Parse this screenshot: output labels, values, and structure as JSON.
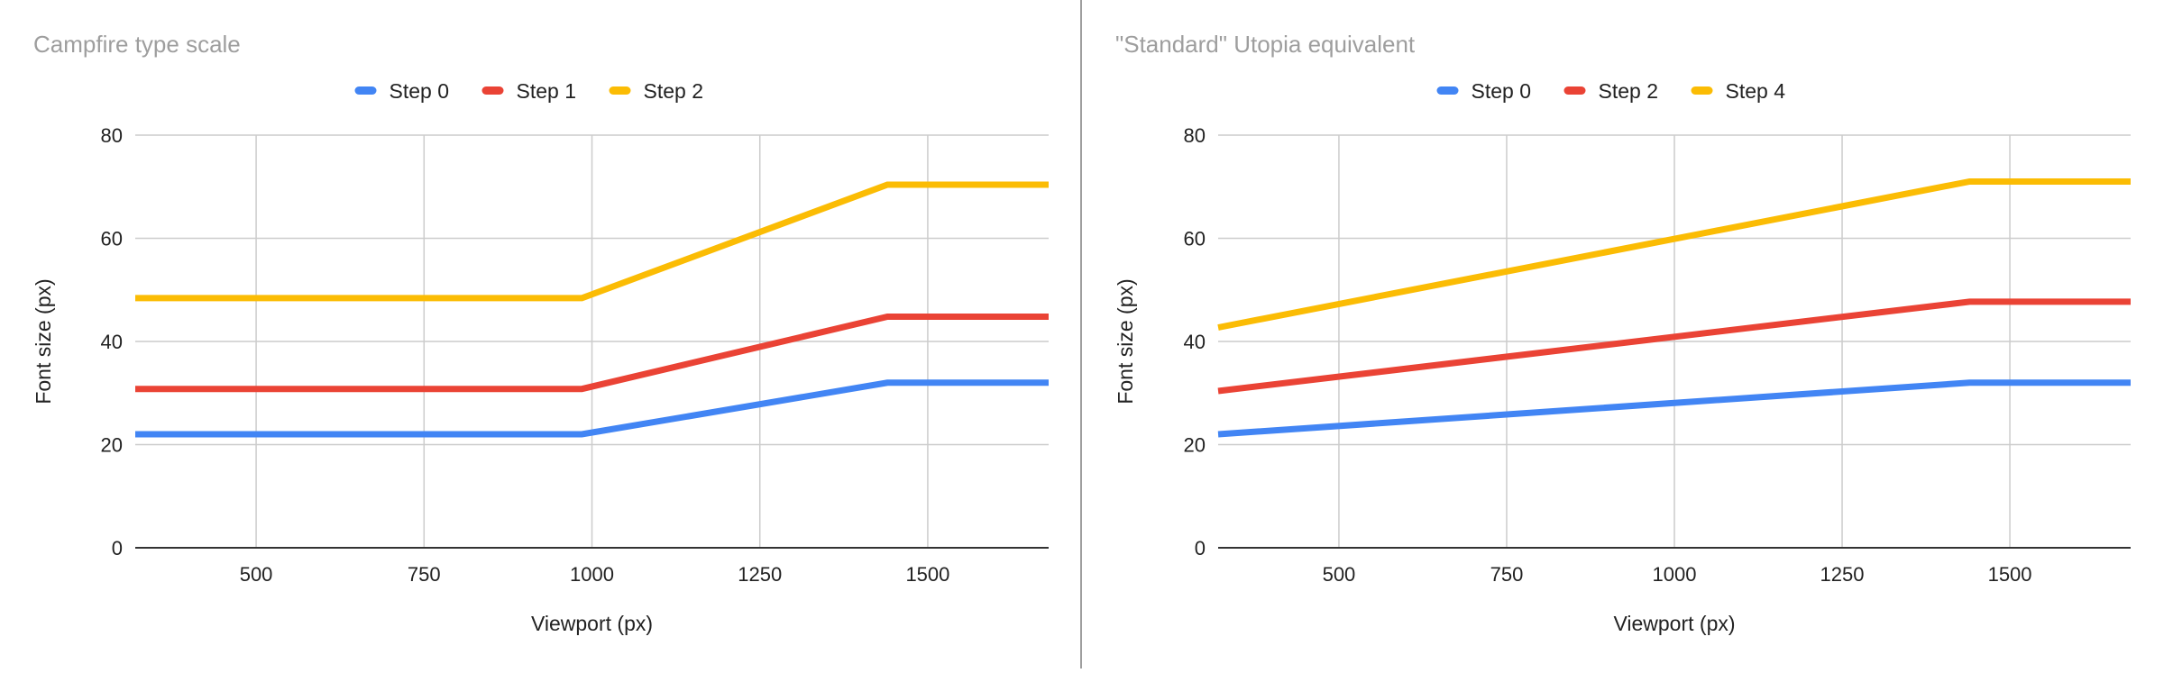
{
  "chart_data": [
    {
      "type": "line",
      "title": "Campfire type scale",
      "xlabel": "Viewport (px)",
      "ylabel": "Font size (px)",
      "xlim": [
        320,
        1680
      ],
      "ylim": [
        0,
        80
      ],
      "xticks": [
        500,
        750,
        1000,
        1250,
        1500
      ],
      "yticks": [
        0,
        20,
        40,
        60,
        80
      ],
      "grid": true,
      "legend": "top-center",
      "series": [
        {
          "name": "Step 0",
          "color": "#4285F4",
          "x": [
            320,
            985,
            1440,
            1680
          ],
          "y": [
            22,
            22,
            32,
            32
          ]
        },
        {
          "name": "Step 1",
          "color": "#EA4335",
          "x": [
            320,
            985,
            1440,
            1680
          ],
          "y": [
            30.8,
            30.8,
            44.8,
            44.8
          ]
        },
        {
          "name": "Step 2",
          "color": "#FBBC04",
          "x": [
            320,
            985,
            1440,
            1680
          ],
          "y": [
            48.4,
            48.4,
            70.4,
            70.4
          ]
        }
      ]
    },
    {
      "type": "line",
      "title": "\"Standard\" Utopia equivalent",
      "xlabel": "Viewport (px)",
      "ylabel": "Font size (px)",
      "xlim": [
        320,
        1680
      ],
      "ylim": [
        0,
        80
      ],
      "xticks": [
        500,
        750,
        1000,
        1250,
        1500
      ],
      "yticks": [
        0,
        20,
        40,
        60,
        80
      ],
      "grid": true,
      "legend": "top-center",
      "series": [
        {
          "name": "Step 0",
          "color": "#4285F4",
          "x": [
            320,
            1440,
            1680
          ],
          "y": [
            22,
            32,
            32
          ]
        },
        {
          "name": "Step 2",
          "color": "#EA4335",
          "x": [
            320,
            1440,
            1680
          ],
          "y": [
            30.4,
            47.7,
            47.7
          ]
        },
        {
          "name": "Step 4",
          "color": "#FBBC04",
          "x": [
            320,
            1440,
            1680
          ],
          "y": [
            42.7,
            71,
            71
          ]
        }
      ]
    }
  ],
  "divider_color": "#9e9e9e"
}
